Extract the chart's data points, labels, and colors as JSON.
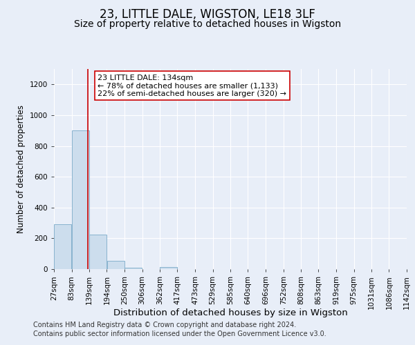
{
  "title": "23, LITTLE DALE, WIGSTON, LE18 3LF",
  "subtitle": "Size of property relative to detached houses in Wigston",
  "xlabel": "Distribution of detached houses by size in Wigston",
  "ylabel": "Number of detached properties",
  "bin_edges": [
    27,
    83,
    139,
    194,
    250,
    306,
    362,
    417,
    473,
    529,
    585,
    640,
    696,
    752,
    808,
    863,
    919,
    975,
    1031,
    1086,
    1142
  ],
  "bin_counts": [
    290,
    900,
    225,
    55,
    10,
    0,
    15,
    0,
    0,
    0,
    0,
    0,
    0,
    0,
    0,
    0,
    0,
    0,
    0,
    0
  ],
  "bar_color": "#ccdded",
  "bar_edge_color": "#7aaac8",
  "property_size": 134,
  "vline_color": "#cc0000",
  "annotation_line1": "23 LITTLE DALE: 134sqm",
  "annotation_line2": "← 78% of detached houses are smaller (1,133)",
  "annotation_line3": "22% of semi-detached houses are larger (320) →",
  "annotation_box_color": "#ffffff",
  "annotation_box_edge": "#cc0000",
  "ylim": [
    0,
    1300
  ],
  "yticks": [
    0,
    200,
    400,
    600,
    800,
    1000,
    1200
  ],
  "background_color": "#e8eef8",
  "grid_color": "#ffffff",
  "footer_line1": "Contains HM Land Registry data © Crown copyright and database right 2024.",
  "footer_line2": "Contains public sector information licensed under the Open Government Licence v3.0.",
  "title_fontsize": 12,
  "subtitle_fontsize": 10,
  "xlabel_fontsize": 9.5,
  "ylabel_fontsize": 8.5,
  "tick_fontsize": 7.5,
  "annotation_fontsize": 8,
  "footer_fontsize": 7
}
